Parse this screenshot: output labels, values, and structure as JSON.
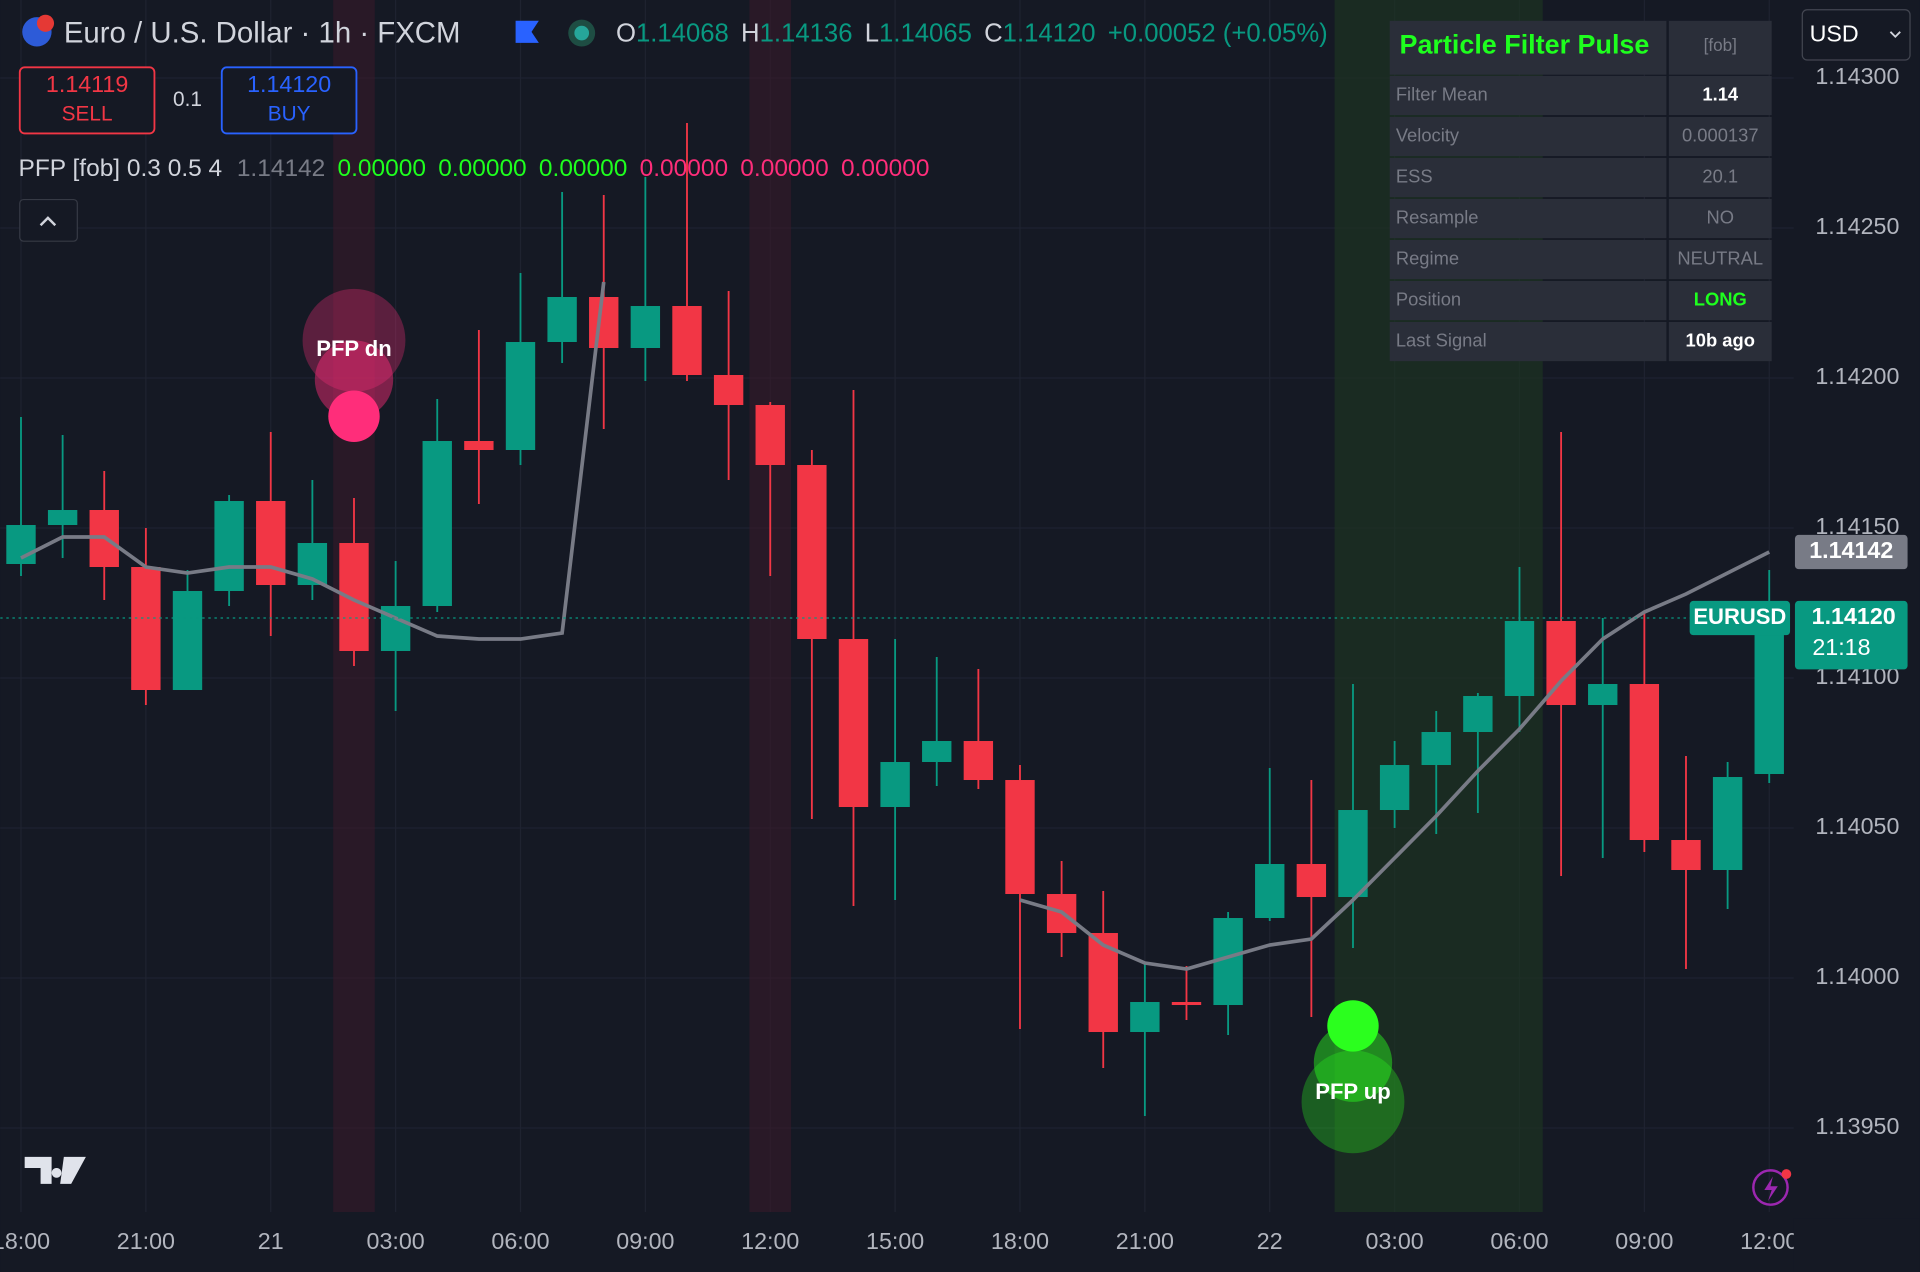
{
  "header": {
    "title": "Euro / U.S. Dollar · 1h · FXCM",
    "ohlc": [
      {
        "label": "O",
        "value": "1.14068"
      },
      {
        "label": "H",
        "value": "1.14136"
      },
      {
        "label": "L",
        "value": "1.14065"
      },
      {
        "label": "C",
        "value": "1.14120"
      }
    ],
    "change": "+0.00052 (+0.05%)",
    "currency": "USD"
  },
  "order_panel": {
    "sell_price": "1.14119",
    "sell_label": "SELL",
    "quantity": "0.1",
    "buy_price": "1.14120",
    "buy_label": "BUY"
  },
  "indicator": {
    "name": "PFP [fob] 0.3 0.5 4",
    "last": "1.14142",
    "values": [
      "0.00000",
      "0.00000",
      "0.00000",
      "0.00000",
      "0.00000",
      "0.00000"
    ],
    "colors": [
      "#1eff1e",
      "#1eff1e",
      "#1eff1e",
      "#ff2d7a",
      "#ff2d7a",
      "#ff2d7a"
    ]
  },
  "table": {
    "title": "Particle Filter Pulse",
    "tag": "[fob]",
    "rows": [
      [
        "Filter Mean",
        "1.14"
      ],
      [
        "Velocity",
        "0.000137"
      ],
      [
        "ESS",
        "20.1"
      ],
      [
        "Resample",
        "NO"
      ],
      [
        "Regime",
        "NEUTRAL"
      ],
      [
        "Position",
        "LONG"
      ],
      [
        "Last Signal",
        "10b ago"
      ]
    ],
    "value_colors": [
      "#ffffff",
      "#787b86",
      "#787b86",
      "#787b86",
      "#787b86",
      "#1eff1e",
      "#ffffff"
    ]
  },
  "price_labels": {
    "indicator": "1.14142",
    "symbol": "EURUSD",
    "last": "1.14120",
    "countdown": "21:18"
  },
  "signals": [
    {
      "label": "PFP dn",
      "color": "#ff2d7a"
    },
    {
      "label": "PFP up",
      "color": "#2bff1e"
    }
  ],
  "chart_data": {
    "type": "candlestick",
    "up_color": "#089981",
    "down_color": "#f23645",
    "categories": [
      "18:00",
      null,
      null,
      "21:00",
      null,
      null,
      "21",
      null,
      null,
      "03:00",
      null,
      null,
      "06:00",
      null,
      null,
      "09:00",
      null,
      null,
      "12:00",
      null,
      null,
      "15:00",
      null,
      null,
      "18:00",
      null,
      null,
      "21:00",
      null,
      null,
      "22",
      null,
      null,
      "03:00",
      null,
      null,
      "06:00",
      null,
      null,
      "09:00",
      null,
      null,
      "12:00"
    ],
    "open": [
      1.14138,
      1.14151,
      1.14156,
      1.14137,
      1.14096,
      1.14129,
      1.14159,
      1.14131,
      1.14145,
      1.14109,
      1.14124,
      1.14179,
      1.14176,
      1.14212,
      1.14227,
      1.1421,
      1.14224,
      1.14201,
      1.14191,
      1.14171,
      1.14113,
      1.14057,
      1.14072,
      1.14079,
      1.14066,
      1.14028,
      1.14015,
      1.13982,
      1.13992,
      1.13991,
      1.1402,
      1.14038,
      1.14027,
      1.14056,
      1.14071,
      1.14082,
      1.14094,
      1.14119,
      1.14091,
      1.14098,
      1.14046,
      1.14036,
      1.14068
    ],
    "high": [
      1.14187,
      1.14181,
      1.14169,
      1.1415,
      1.14136,
      1.14161,
      1.14182,
      1.14166,
      1.1416,
      1.14139,
      1.14193,
      1.14216,
      1.14235,
      1.14262,
      1.14261,
      1.14267,
      1.14285,
      1.14229,
      1.14192,
      1.14176,
      1.14196,
      1.14113,
      1.14107,
      1.14103,
      1.14071,
      1.14039,
      1.14029,
      1.14005,
      1.14004,
      1.14022,
      1.1407,
      1.14066,
      1.14098,
      1.14079,
      1.14089,
      1.14095,
      1.14137,
      1.14182,
      1.1412,
      1.14122,
      1.14074,
      1.14072,
      1.14136
    ],
    "low": [
      1.14134,
      1.1414,
      1.14126,
      1.14091,
      1.14096,
      1.14124,
      1.14114,
      1.14126,
      1.14104,
      1.14089,
      1.14122,
      1.14158,
      1.14171,
      1.14205,
      1.14183,
      1.14199,
      1.14199,
      1.14166,
      1.14134,
      1.14053,
      1.14024,
      1.14026,
      1.14064,
      1.14063,
      1.13983,
      1.14007,
      1.1397,
      1.13954,
      1.13986,
      1.13981,
      1.14019,
      1.13987,
      1.1401,
      1.1405,
      1.14048,
      1.14055,
      1.14082,
      1.14034,
      1.1404,
      1.14042,
      1.14003,
      1.14023,
      1.14065
    ],
    "close": [
      1.14151,
      1.14156,
      1.14137,
      1.14096,
      1.14129,
      1.14159,
      1.14131,
      1.14145,
      1.14109,
      1.14124,
      1.14179,
      1.14176,
      1.14212,
      1.14227,
      1.1421,
      1.14224,
      1.14201,
      1.14191,
      1.14171,
      1.14113,
      1.14057,
      1.14072,
      1.14079,
      1.14066,
      1.14028,
      1.14015,
      1.13982,
      1.13992,
      1.13991,
      1.1402,
      1.14038,
      1.14027,
      1.14056,
      1.14071,
      1.14082,
      1.14094,
      1.14119,
      1.14091,
      1.14098,
      1.14046,
      1.14036,
      1.14067,
      1.1412
    ],
    "line": {
      "color": "#787b86",
      "values": [
        1.1414,
        1.14147,
        1.14147,
        1.14137,
        1.14135,
        1.14137,
        1.14137,
        1.14133,
        1.14126,
        1.1412,
        1.14114,
        1.14113,
        1.14113,
        1.14115,
        1.14232,
        null,
        null,
        null,
        null,
        null,
        null,
        null,
        null,
        null,
        1.14026,
        1.14022,
        1.14011,
        1.14005,
        1.14003,
        1.14007,
        1.14011,
        1.14013,
        1.14026,
        1.1404,
        1.14054,
        1.14069,
        1.14083,
        1.14099,
        1.14113,
        1.14122,
        1.14128,
        1.14135,
        1.14142
      ]
    },
    "ylim": [
      1.13922,
      1.14326
    ],
    "yticks": [
      {
        "value": 1.1395,
        "label": "1.13950"
      },
      {
        "value": 1.14,
        "label": "1.14000"
      },
      {
        "value": 1.1405,
        "label": "1.14050"
      },
      {
        "value": 1.141,
        "label": "1.14100"
      },
      {
        "value": 1.1415,
        "label": "1.14150"
      },
      {
        "value": 1.142,
        "label": "1.14200"
      },
      {
        "value": 1.1425,
        "label": "1.14250"
      },
      {
        "value": 1.143,
        "label": "1.14300"
      }
    ],
    "grid": true
  }
}
